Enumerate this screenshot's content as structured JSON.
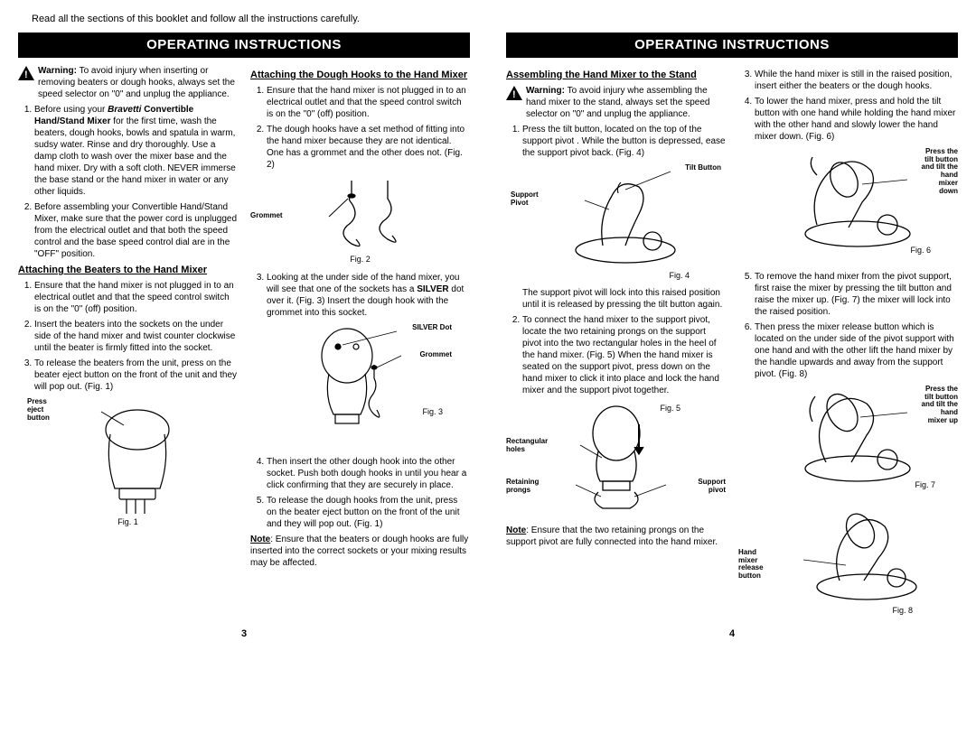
{
  "intro": "Read all the sections of this booklet and follow all the instructions carefully.",
  "banner": "OPERATING INSTRUCTIONS",
  "page3": {
    "num": "3",
    "colA": {
      "warning_label": "Warning:",
      "warning_text_lead": " To avoid injury when inserting or removing beaters or dough hooks, always set the speed selector on \"0\" and unplug the appliance.",
      "list1": [
        "Before using your <b><i>Bravetti</i> Convertible Hand/Stand Mixer</b> for the first time, wash the beaters, dough hooks, bowls and spatula in warm, sudsy water. Rinse and dry thoroughly. Use a damp cloth to wash over the mixer base and the hand mixer. Dry with a soft cloth. NEVER immerse the base stand or the hand mixer in water or any other liquids.",
        "Before assembling your Convertible Hand/Stand Mixer, make sure that the power cord is unplugged from the electrical outlet and that both the speed control and the base speed control dial are in the \"OFF\" position."
      ],
      "title2": "Attaching the Beaters to the Hand Mixer",
      "list2": [
        "Ensure that the hand mixer is not plugged in to an electrical outlet and that the speed control switch is on the \"0\" (off) position.",
        "Insert the beaters into the sockets on the under side of the hand mixer and twist counter clockwise until the beater is firmly fitted into the socket.",
        "To release the beaters from the unit, press on the beater eject button on the front of the unit and they will pop out. (Fig. 1)"
      ],
      "fig1_lbl": "Press\neject\nbutton",
      "fig1_cap": "Fig. 1"
    },
    "colB": {
      "title1": "Attaching the Dough Hooks to the Hand Mixer",
      "list1": [
        "Ensure that the hand mixer is not plugged in to an electrical outlet and that the speed control switch is on the \"0\" (off) position.",
        "The dough hooks have a set method of fitting into the hand mixer because they are not identical. One has a grommet and the other does not. (Fig. 2)"
      ],
      "fig2_lbl": "Grommet",
      "fig2_cap": "Fig. 2",
      "list2_start": "3",
      "list2": [
        "Looking at the under side of the hand mixer, you will see that one of the sockets has a <b>SILVER</b> dot over it. (Fig. 3) Insert the dough hook with the grommet into this socket."
      ],
      "fig3_lbl_a": "SILVER Dot",
      "fig3_lbl_b": "Grommet",
      "fig3_cap": "Fig. 3",
      "list3_start": "4",
      "list3": [
        "Then insert the other dough hook into the other socket. Push both dough hooks in until you hear a click confirming that they are securely in place.",
        "To release the dough hooks from the unit, press on the beater eject button on the front of the unit and they will pop out. (Fig. 1)"
      ],
      "note_label": "Note",
      "note_text": ": Ensure that the beaters or dough hooks are fully inserted into the correct sockets or your mixing results may be affected."
    }
  },
  "page4": {
    "num": "4",
    "colA": {
      "title1": "Assembling the Hand Mixer to the Stand",
      "warning_label": "Warning:",
      "warning_text_lead": " To avoid injury whe assembling the hand mixer to the stand, always set the speed selector on \"0\" and unplug the appliance.",
      "list1": [
        "Press the tilt button, located on the top of the support pivot . While the button is depressed, ease the support pivot back. (Fig. 4)"
      ],
      "fig4_lbl_a": "Tilt Button",
      "fig4_lbl_b": "Support\nPivot",
      "fig4_cap": "Fig. 4",
      "para1": "The support pivot will lock into this raised position until it is released by pressing the tilt button again.",
      "list2_start": "2",
      "list2": [
        "To connect the hand mixer to the support pivot, locate the two retaining prongs on the support pivot into the two rectangular holes in the heel of the hand mixer. (Fig. 5) When the hand mixer is seated on the support pivot, press down on the hand mixer to click it into place and lock the hand mixer and the support pivot together."
      ],
      "fig5_cap": "Fig. 5",
      "fig5_lbl_a": "Rectangular\nholes",
      "fig5_lbl_b": "Retaining\nprongs",
      "fig5_lbl_c": "Support\npivot",
      "note_label": "Note",
      "note_text": ": Ensure that the two retaining prongs on the support pivot are fully connected into the hand mixer."
    },
    "colB": {
      "list1_start": "3",
      "list1": [
        "While the hand mixer is still in the raised position, insert either the beaters or the dough hooks.",
        "To lower the hand mixer, press and hold the tilt button with one hand while holding the hand mixer with the other hand and slowly lower the hand mixer down. (Fig. 6)"
      ],
      "fig6_lbl": "Press the\ntilt button\nand tilt the\nhand\nmixer\ndown",
      "fig6_cap": "Fig. 6",
      "list2_start": "5",
      "list2": [
        "To remove the hand mixer from the pivot support, first raise the mixer by pressing the tilt button and raise the mixer up. (Fig. 7) the mixer will lock into the raised position.",
        "Then press the mixer release button which is located on the under side of the pivot support with one hand and with the other lift the hand mixer by the handle upwards and away from the support pivot. (Fig. 8)"
      ],
      "fig7_lbl": "Press the\ntilt button\nand tilt the\nhand\nmixer up",
      "fig7_cap": "Fig. 7",
      "fig8_lbl": "Hand\nmixer\nrelease\nbutton",
      "fig8_cap": "Fig. 8"
    }
  }
}
